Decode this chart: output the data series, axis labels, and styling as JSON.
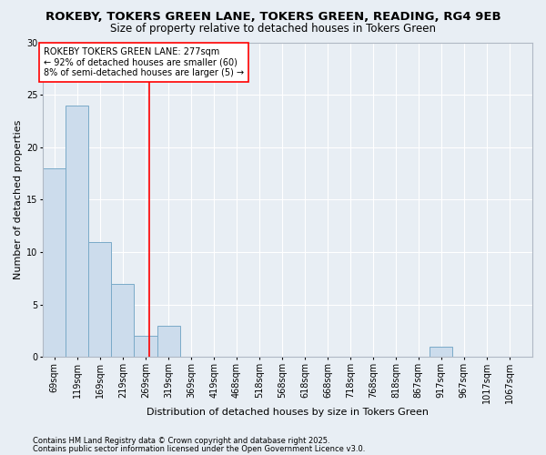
{
  "title": "ROKEBY, TOKERS GREEN LANE, TOKERS GREEN, READING, RG4 9EB",
  "subtitle": "Size of property relative to detached houses in Tokers Green",
  "xlabel": "Distribution of detached houses by size in Tokers Green",
  "ylabel": "Number of detached properties",
  "bar_values": [
    18,
    24,
    11,
    7,
    2,
    3,
    0,
    0,
    0,
    0,
    0,
    0,
    0,
    0,
    0,
    0,
    0,
    1,
    0,
    0
  ],
  "bin_left_edges": [
    44,
    94,
    144,
    194,
    244,
    294,
    344,
    394,
    443,
    493,
    543,
    593,
    643,
    693,
    743,
    793,
    842,
    892,
    942,
    992
  ],
  "bin_width": 50,
  "bin_labels": [
    "69sqm",
    "119sqm",
    "169sqm",
    "219sqm",
    "269sqm",
    "319sqm",
    "369sqm",
    "419sqm",
    "468sqm",
    "518sqm",
    "568sqm",
    "618sqm",
    "668sqm",
    "718sqm",
    "768sqm",
    "818sqm",
    "867sqm",
    "917sqm",
    "967sqm",
    "1017sqm",
    "1067sqm"
  ],
  "tick_positions": [
    69,
    119,
    169,
    219,
    269,
    319,
    369,
    419,
    468,
    518,
    568,
    618,
    668,
    718,
    768,
    818,
    867,
    917,
    967,
    1017,
    1067
  ],
  "bar_color": "#ccdcec",
  "bar_edge_color": "#7aaac8",
  "reference_line_x": 277,
  "xlim_left": 44,
  "xlim_right": 1117,
  "ylim": [
    0,
    30
  ],
  "yticks": [
    0,
    5,
    10,
    15,
    20,
    25,
    30
  ],
  "annotation_title": "ROKEBY TOKERS GREEN LANE: 277sqm",
  "annotation_line1": "← 92% of detached houses are smaller (60)",
  "annotation_line2": "8% of semi-detached houses are larger (5) →",
  "footnote1": "Contains HM Land Registry data © Crown copyright and database right 2025.",
  "footnote2": "Contains public sector information licensed under the Open Government Licence v3.0.",
  "bg_color": "#e8eef4",
  "plot_bg_color": "#e8eef4",
  "grid_color": "#ffffff",
  "title_fontsize": 9.5,
  "subtitle_fontsize": 8.5,
  "axis_label_fontsize": 8,
  "tick_fontsize": 7,
  "annotation_fontsize": 7,
  "footnote_fontsize": 6
}
